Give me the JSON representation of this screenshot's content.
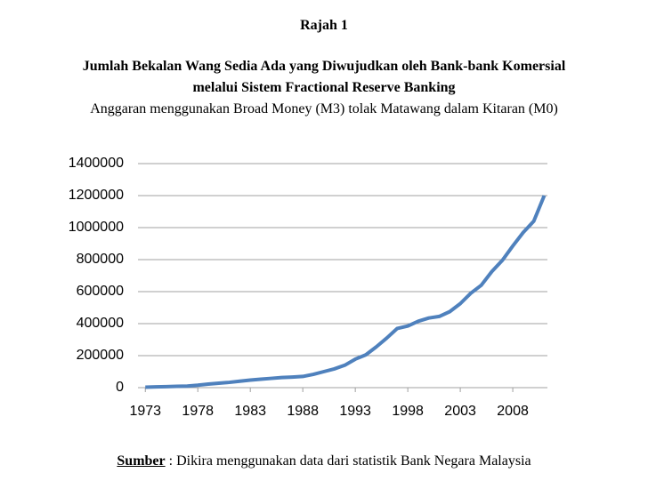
{
  "figure_label": "Rajah 1",
  "title_lines": [
    "Jumlah Bekalan Wang Sedia Ada yang Diwujudkan oleh Bank-bank Komersial",
    "melalui Sistem Fractional Reserve Banking"
  ],
  "subtitle": "Anggaran menggunakan Broad Money (M3) tolak Matawang dalam Kitaran (M0)",
  "source": {
    "label": "Sumber",
    "text": " : Dikira menggunakan data dari statistik Bank Negara Malaysia"
  },
  "chart_data": {
    "type": "line",
    "x": [
      1973,
      1974,
      1975,
      1976,
      1977,
      1978,
      1979,
      1980,
      1981,
      1982,
      1983,
      1984,
      1985,
      1986,
      1987,
      1988,
      1989,
      1990,
      1991,
      1992,
      1993,
      1994,
      1995,
      1996,
      1997,
      1998,
      1999,
      2000,
      2001,
      2002,
      2003,
      2004,
      2005,
      2006,
      2007,
      2008,
      2009,
      2010,
      2011
    ],
    "series": [
      {
        "color": "#4f81bd",
        "values": [
          3000,
          5000,
          6000,
          8000,
          10000,
          15000,
          22000,
          28000,
          33000,
          40000,
          47000,
          53000,
          58000,
          63000,
          66000,
          70000,
          83000,
          100000,
          117000,
          140000,
          178000,
          205000,
          255000,
          310000,
          370000,
          385000,
          415000,
          435000,
          445000,
          475000,
          525000,
          590000,
          640000,
          725000,
          795000,
          885000,
          970000,
          1040000,
          1200000
        ]
      }
    ],
    "xlim": [
      1972.3,
      2011.3
    ],
    "xticks": [
      1973,
      1978,
      1983,
      1988,
      1993,
      1998,
      2003,
      2008
    ],
    "ylim": [
      0,
      1400000
    ],
    "yticks": [
      0,
      200000,
      400000,
      600000,
      800000,
      1000000,
      1200000,
      1400000
    ],
    "grid": true
  }
}
